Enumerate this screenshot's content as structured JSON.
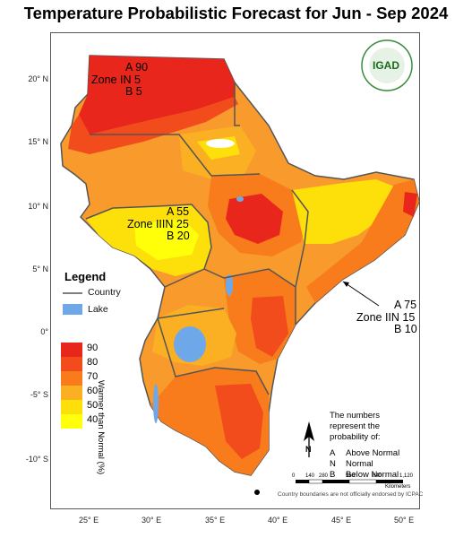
{
  "title": "Temperature Probabilistic Forecast for Jun - Sep 2024",
  "legend": {
    "title": "Legend",
    "country_label": "Country",
    "lake_label": "Lake",
    "colorbar_label": "Warmer than Normal (%)",
    "levels": [
      "90",
      "80",
      "70",
      "60",
      "50",
      "40"
    ],
    "colors": [
      "#e8261c",
      "#f24b1c",
      "#f87c1c",
      "#fbb024",
      "#fde00a",
      "#ffff0a"
    ]
  },
  "zones": [
    {
      "name": "Zone I",
      "a": "A 90",
      "n": "N 5",
      "b": "B 5"
    },
    {
      "name": "Zone III",
      "a": "A 55",
      "n": "N 25",
      "b": "B 20"
    },
    {
      "name": "Zone II",
      "a": "A 75",
      "n": "N 15",
      "b": "B 10"
    }
  ],
  "axes": {
    "lat_labels": [
      "20° N",
      "15° N",
      "10° N",
      "5° N",
      "0°",
      "-5° S",
      "-10° S"
    ],
    "lon_labels": [
      "25° E",
      "30° E",
      "35° E",
      "40° E",
      "45° E",
      "50° E"
    ]
  },
  "note": {
    "intro": "The numbers represent the probability of:",
    "items": [
      {
        "key": "A",
        "text": "Above Normal"
      },
      {
        "key": "N",
        "text": "Normal"
      },
      {
        "key": "B",
        "text": "Below Normal"
      }
    ]
  },
  "scale": {
    "ticks": [
      "0",
      "140",
      "280",
      "560",
      "840",
      "1,120"
    ],
    "unit": "Kilometers"
  },
  "north_label": "N",
  "disclaimer": "Country boundaries are not officially endorsed by ICPAC",
  "logo_text": "IGAD",
  "logo_ring_text": "INTERGOVERNMENTAL AUTHORITY ON DEVELOPMENT"
}
